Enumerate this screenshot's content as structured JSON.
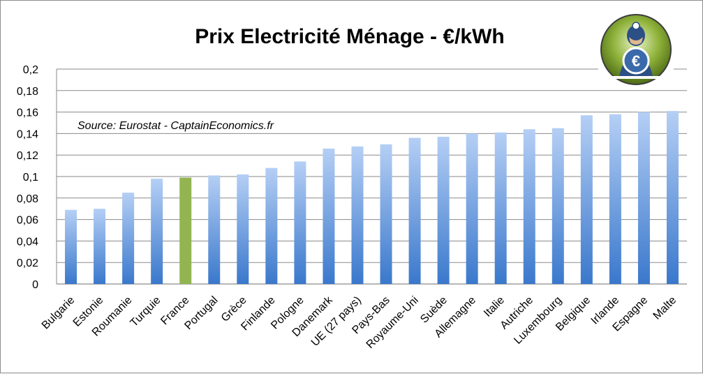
{
  "chart_data": {
    "type": "bar",
    "title": "Prix Electricité Ménage -  €/kWh",
    "annotation": "Source: Eurostat - CaptainEconomics.fr",
    "xlabel": "",
    "ylabel": "",
    "ylim": [
      0,
      0.2
    ],
    "yticks": [
      "0",
      "0,02",
      "0,04",
      "0,06",
      "0,08",
      "0,1",
      "0,12",
      "0,14",
      "0,16",
      "0,18",
      "0,2"
    ],
    "grid": true,
    "legend": "none",
    "categories": [
      "Bulgarie",
      "Estonie",
      "Roumanie",
      "Turquie",
      "France",
      "Portugal",
      "Grèce",
      "Finlande",
      "Pologne",
      "Danemark",
      "UE (27 pays)",
      "Pays-Bas",
      "Royaume-Uni",
      "Suède",
      "Allemagne",
      "Italie",
      "Autriche",
      "Luxembourg",
      "Belgique",
      "Irlande",
      "Espagne",
      "Malte"
    ],
    "values": [
      0.069,
      0.07,
      0.085,
      0.098,
      0.099,
      0.101,
      0.102,
      0.108,
      0.114,
      0.126,
      0.128,
      0.13,
      0.136,
      0.137,
      0.14,
      0.141,
      0.144,
      0.145,
      0.157,
      0.158,
      0.16,
      0.161
    ],
    "highlight_category": "France",
    "colors": {
      "bar_top": "#b5cff5",
      "bar_bottom": "#3a78cc",
      "highlight": "#92b552",
      "grid": "#8a8a8a"
    }
  },
  "logo": {
    "icon": "captain-economics-euro-shield-logo"
  }
}
